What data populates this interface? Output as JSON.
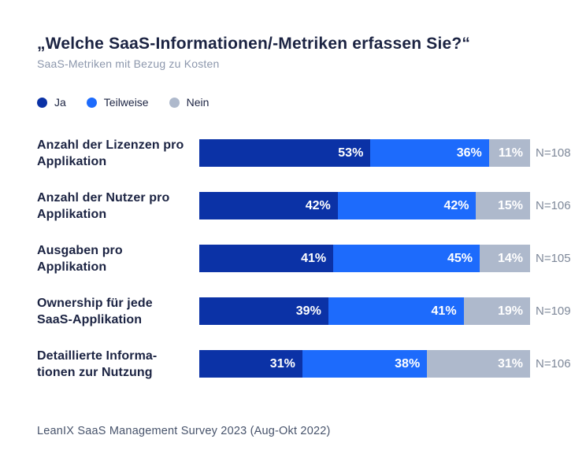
{
  "header": {
    "title": "„Welche SaaS-Informationen/-Metriken erfassen Sie?“",
    "subtitle": "SaaS-Metriken mit Bezug zu Kosten"
  },
  "legend": [
    {
      "label": "Ja",
      "color": "#0B32A6"
    },
    {
      "label": "Teilweise",
      "color": "#1D6BFC"
    },
    {
      "label": "Nein",
      "color": "#AEB9CC"
    }
  ],
  "chart_data": {
    "type": "bar",
    "orientation": "horizontal",
    "stacked": true,
    "unit": "percent",
    "value_suffix": "%",
    "xlim": [
      0,
      100
    ],
    "grid": false,
    "legend_position": "top-left",
    "categories": [
      "Anzahl der Lizenzen pro Applikation",
      "Anzahl der Nutzer pro Applikation",
      "Ausgaben pro Applikation",
      "Ownership für jede SaaS-Applikation",
      "Detaillierte Informationen zur Nutzung"
    ],
    "categories_lines": [
      [
        "Anzahl der Lizenzen pro",
        "Applikation"
      ],
      [
        "Anzahl der Nutzer pro",
        "Applikation"
      ],
      [
        "Ausgaben pro",
        "Applikation"
      ],
      [
        "Ownership für jede",
        "SaaS-Applikation"
      ],
      [
        "Detaillierte Informa-",
        "tionen zur Nutzung"
      ]
    ],
    "series": [
      {
        "name": "Ja",
        "color": "#0B32A6",
        "values": [
          53,
          42,
          41,
          39,
          31
        ]
      },
      {
        "name": "Teilweise",
        "color": "#1D6BFC",
        "values": [
          36,
          42,
          45,
          41,
          38
        ]
      },
      {
        "name": "Nein",
        "color": "#AEB9CC",
        "values": [
          11,
          15,
          14,
          19,
          31
        ]
      }
    ],
    "sample_sizes": [
      "N=108",
      "N=106",
      "N=105",
      "N=109",
      "N=106"
    ]
  },
  "footer": {
    "source": "LeanIX SaaS Management Survey 2023 (Aug-Okt 2022)"
  }
}
